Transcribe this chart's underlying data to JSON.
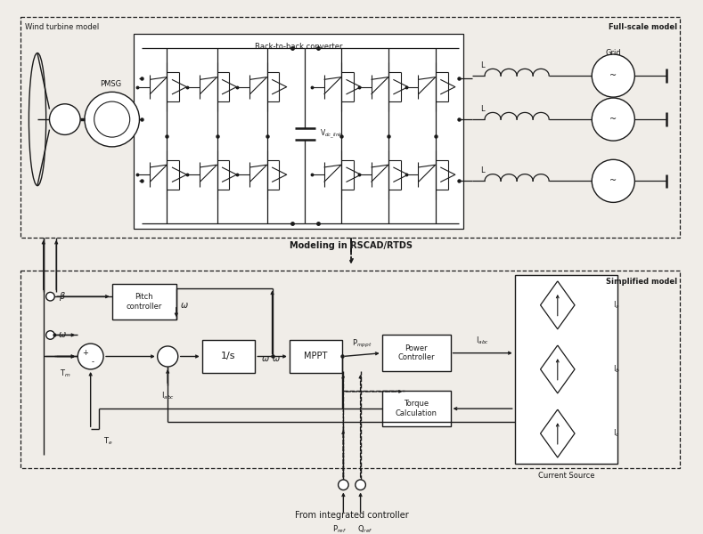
{
  "title_wt": "Wind turbine model",
  "title_full": "Full-scale model",
  "title_simp": "Simplified model",
  "label_pmsg": "PMSG",
  "label_btb": "Back-to-back converter",
  "label_grid": "Grid",
  "label_L": "L",
  "label_modeling": "Modeling in RSCAD/RTDS",
  "label_pitch": "Pitch\ncontroller",
  "label_1s": "1/s",
  "label_mppt": "MPPT",
  "label_power_ctrl": "Power\nController",
  "label_torque_calc": "Torque\nCalculation",
  "label_current_source": "Current Source",
  "label_from_ctrl": "From integrated controller",
  "label_beta": "β",
  "label_omega": "ω",
  "label_Tm": "T$_m$",
  "label_Te": "T$_e$",
  "label_Iabc": "I$_{abc}$",
  "label_Pmppt": "P$_{mppt}$",
  "label_Ia": "I$_a$",
  "label_Ib": "I$_b$",
  "label_Ic": "I$_c$",
  "label_Pref": "P$_{ref}$",
  "label_Qref": "Q$_{ref}$",
  "bg_color": "#f0ede8",
  "black": "#1a1a1a",
  "white": "#ffffff"
}
